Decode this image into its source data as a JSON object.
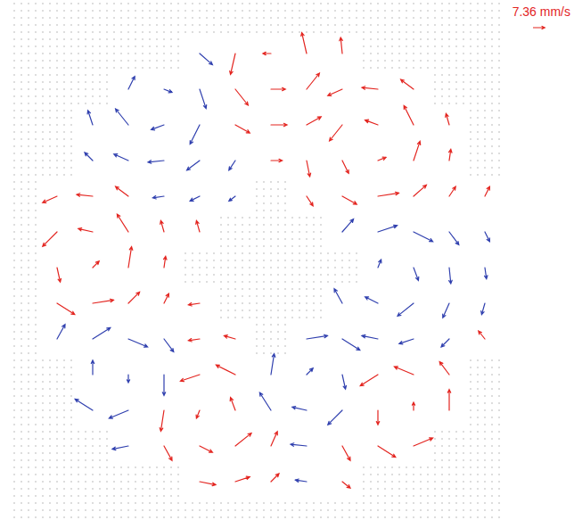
{
  "chart_data": {
    "type": "quiver",
    "xlim": [
      0,
      68
    ],
    "ylim": [
      0,
      72
    ],
    "tick_labels": false,
    "reference": {
      "value": 7.36,
      "label": "7.36 mm/s",
      "color": "#e3241f"
    },
    "series": [
      {
        "color": "#e3241f",
        "x": [
          26,
          31,
          36,
          46,
          21,
          26,
          31,
          36,
          46,
          51,
          56,
          21,
          26,
          31,
          51,
          56,
          61,
          26,
          31,
          51,
          56,
          61,
          26,
          31,
          66,
          6,
          11,
          16,
          21,
          26,
          6,
          11,
          16,
          21,
          6,
          11,
          16,
          21,
          26,
          6,
          11,
          16,
          41,
          46,
          51,
          56,
          61,
          66,
          36,
          41,
          46,
          51,
          56,
          61,
          31,
          36,
          41,
          46,
          51,
          56,
          61,
          31,
          36,
          41,
          46,
          51,
          56,
          31,
          36,
          41,
          46
        ],
        "y": [
          5,
          5,
          5,
          5,
          10,
          10,
          10,
          10,
          10,
          10,
          10,
          15,
          15,
          15,
          15,
          15,
          15,
          20,
          20,
          20,
          20,
          20,
          25,
          25,
          25,
          30,
          30,
          30,
          30,
          30,
          35,
          35,
          35,
          35,
          40,
          40,
          40,
          40,
          40,
          45,
          45,
          45,
          45,
          45,
          45,
          45,
          45,
          45,
          50,
          50,
          50,
          50,
          50,
          50,
          55,
          55,
          55,
          55,
          55,
          55,
          55,
          60,
          60,
          60,
          60,
          60,
          60,
          65,
          65,
          65,
          65
        ],
        "u": [
          10,
          9,
          5,
          5,
          5,
          8,
          10,
          4,
          5,
          11,
          12,
          -2,
          -2,
          -3,
          0,
          0,
          0,
          -12,
          -12,
          -11,
          -12,
          -6,
          -7,
          -7,
          -4,
          11,
          13,
          7,
          3,
          -7,
          2,
          4,
          2,
          1,
          -9,
          -9,
          -7,
          -2,
          -2,
          -9,
          -10,
          -8,
          4,
          9,
          13,
          8,
          4,
          3,
          7,
          2,
          4,
          5,
          4,
          1,
          9,
          10,
          9,
          -8,
          -8,
          -6,
          -2,
          8,
          9,
          8,
          -9,
          -10,
          -8,
          -3,
          -5,
          -3,
          -1
        ],
        "v": [
          -2,
          3,
          5,
          -4,
          -9,
          -4,
          8,
          9,
          -9,
          -7,
          5,
          -13,
          -5,
          8,
          -9,
          5,
          13,
          -4,
          6,
          -7,
          5,
          8,
          -1,
          2,
          5,
          -7,
          2,
          7,
          6,
          -1,
          -9,
          4,
          13,
          7,
          -9,
          2,
          11,
          7,
          7,
          -4,
          1,
          6,
          -6,
          -5,
          2,
          7,
          6,
          6,
          0,
          -10,
          -8,
          2,
          12,
          7,
          -5,
          0,
          5,
          -10,
          3,
          12,
          7,
          -10,
          0,
          10,
          -4,
          1,
          6,
          -13,
          0,
          13,
          10
        ]
      },
      {
        "color": "#2f3fae",
        "x": [
          41,
          16,
          41,
          11,
          16,
          36,
          41,
          46,
          11,
          16,
          21,
          36,
          41,
          46,
          6,
          11,
          16,
          21,
          41,
          46,
          51,
          56,
          61,
          46,
          51,
          56,
          61,
          66,
          51,
          56,
          61,
          66,
          46,
          51,
          56,
          61,
          66,
          21,
          26,
          31,
          11,
          16,
          21,
          26,
          31,
          11,
          16,
          21,
          26,
          16,
          21,
          26,
          26
        ],
        "y": [
          5,
          10,
          10,
          15,
          15,
          15,
          15,
          15,
          20,
          20,
          20,
          20,
          20,
          20,
          25,
          25,
          25,
          25,
          25,
          25,
          25,
          25,
          25,
          30,
          30,
          30,
          30,
          30,
          35,
          35,
          35,
          35,
          40,
          40,
          40,
          40,
          40,
          45,
          45,
          45,
          50,
          50,
          50,
          50,
          50,
          55,
          55,
          55,
          55,
          60,
          60,
          60,
          65
        ],
        "u": [
          -7,
          -10,
          -10,
          -11,
          -12,
          -7,
          -9,
          -9,
          0,
          0,
          0,
          2,
          4,
          2,
          5,
          11,
          12,
          6,
          13,
          11,
          -10,
          -9,
          -5,
          -5,
          -8,
          -10,
          -4,
          -2,
          2,
          3,
          1,
          1,
          7,
          12,
          12,
          6,
          3,
          -7,
          -6,
          -4,
          -5,
          -9,
          -10,
          -8,
          -4,
          -3,
          -8,
          -8,
          -6,
          4,
          5,
          4,
          8
        ],
        "v": [
          1,
          -2,
          1,
          7,
          -5,
          11,
          2,
          -9,
          9,
          -5,
          -13,
          13,
          4,
          -9,
          9,
          7,
          -5,
          -8,
          2,
          -7,
          2,
          -3,
          -5,
          9,
          4,
          -8,
          -9,
          -7,
          5,
          -8,
          -10,
          -7,
          8,
          4,
          -6,
          -8,
          -6,
          -1,
          -3,
          -3,
          5,
          4,
          -1,
          -6,
          -6,
          9,
          10,
          -3,
          -12,
          8,
          -2,
          -12,
          -7
        ]
      }
    ]
  }
}
